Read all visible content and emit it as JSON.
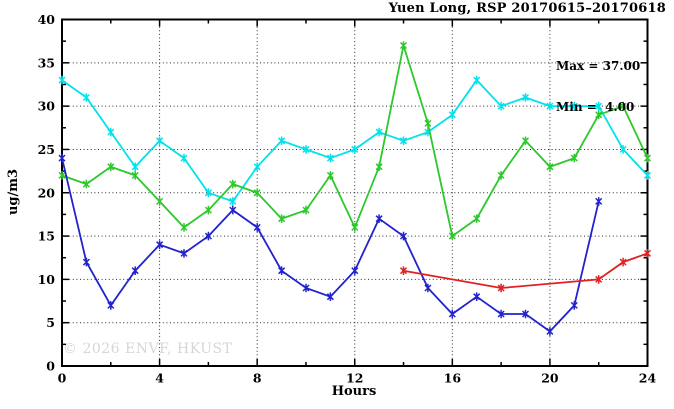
{
  "watermark": "© 2026 ENVF, HKUST",
  "chart_data": {
    "type": "line",
    "title": "Yuen Long, RSP 20170615–20170618",
    "xlabel": "Hours",
    "ylabel": "ug/m3",
    "xlim": [
      0,
      24
    ],
    "ylim": [
      0,
      40
    ],
    "xticks": [
      0,
      4,
      8,
      12,
      16,
      20,
      24
    ],
    "xtick_minor_step": 2,
    "yticks": [
      0,
      5,
      10,
      15,
      20,
      25,
      30,
      35,
      40
    ],
    "ytick_minor_step": 2.5,
    "grid": "dotted-at-major-ticks",
    "legend_position": "none",
    "marker": "asterisk",
    "annotations": {
      "max_label": "Max = 37.00",
      "min_label": "Min =  4.00"
    },
    "series": [
      {
        "name": "cyan",
        "color": "#00E2EC",
        "x": [
          0,
          1,
          2,
          3,
          4,
          5,
          6,
          7,
          8,
          9,
          10,
          11,
          12,
          13,
          14,
          15,
          16,
          17,
          18,
          19,
          20,
          21,
          22,
          23,
          24
        ],
        "y": [
          33,
          31,
          27,
          23,
          26,
          24,
          20,
          19,
          23,
          26,
          25,
          24,
          25,
          27,
          26,
          27,
          29,
          33,
          30,
          31,
          30,
          30,
          30,
          25,
          22
        ]
      },
      {
        "name": "green",
        "color": "#2CC82C",
        "x": [
          0,
          1,
          2,
          3,
          4,
          5,
          6,
          7,
          8,
          9,
          10,
          11,
          12,
          13,
          14,
          15,
          16,
          17,
          18,
          19,
          20,
          21,
          22,
          23,
          24
        ],
        "y": [
          22,
          21,
          23,
          22,
          19,
          16,
          18,
          21,
          20,
          17,
          18,
          22,
          16,
          23,
          37,
          28,
          15,
          17,
          22,
          26,
          23,
          24,
          29,
          30,
          24
        ]
      },
      {
        "name": "blue",
        "color": "#2222CE",
        "x": [
          0,
          1,
          2,
          3,
          4,
          5,
          6,
          7,
          8,
          9,
          10,
          11,
          12,
          13,
          14,
          15,
          16,
          17,
          18,
          19,
          20,
          21,
          22
        ],
        "y": [
          24,
          12,
          7,
          11,
          14,
          13,
          15,
          18,
          16,
          11,
          9,
          8,
          11,
          17,
          15,
          9,
          6,
          8,
          6,
          6,
          4,
          7,
          19
        ]
      },
      {
        "name": "red",
        "color": "#E02222",
        "x": [
          14,
          18,
          22,
          23,
          24
        ],
        "y": [
          11,
          9,
          10,
          12,
          13
        ]
      }
    ]
  }
}
